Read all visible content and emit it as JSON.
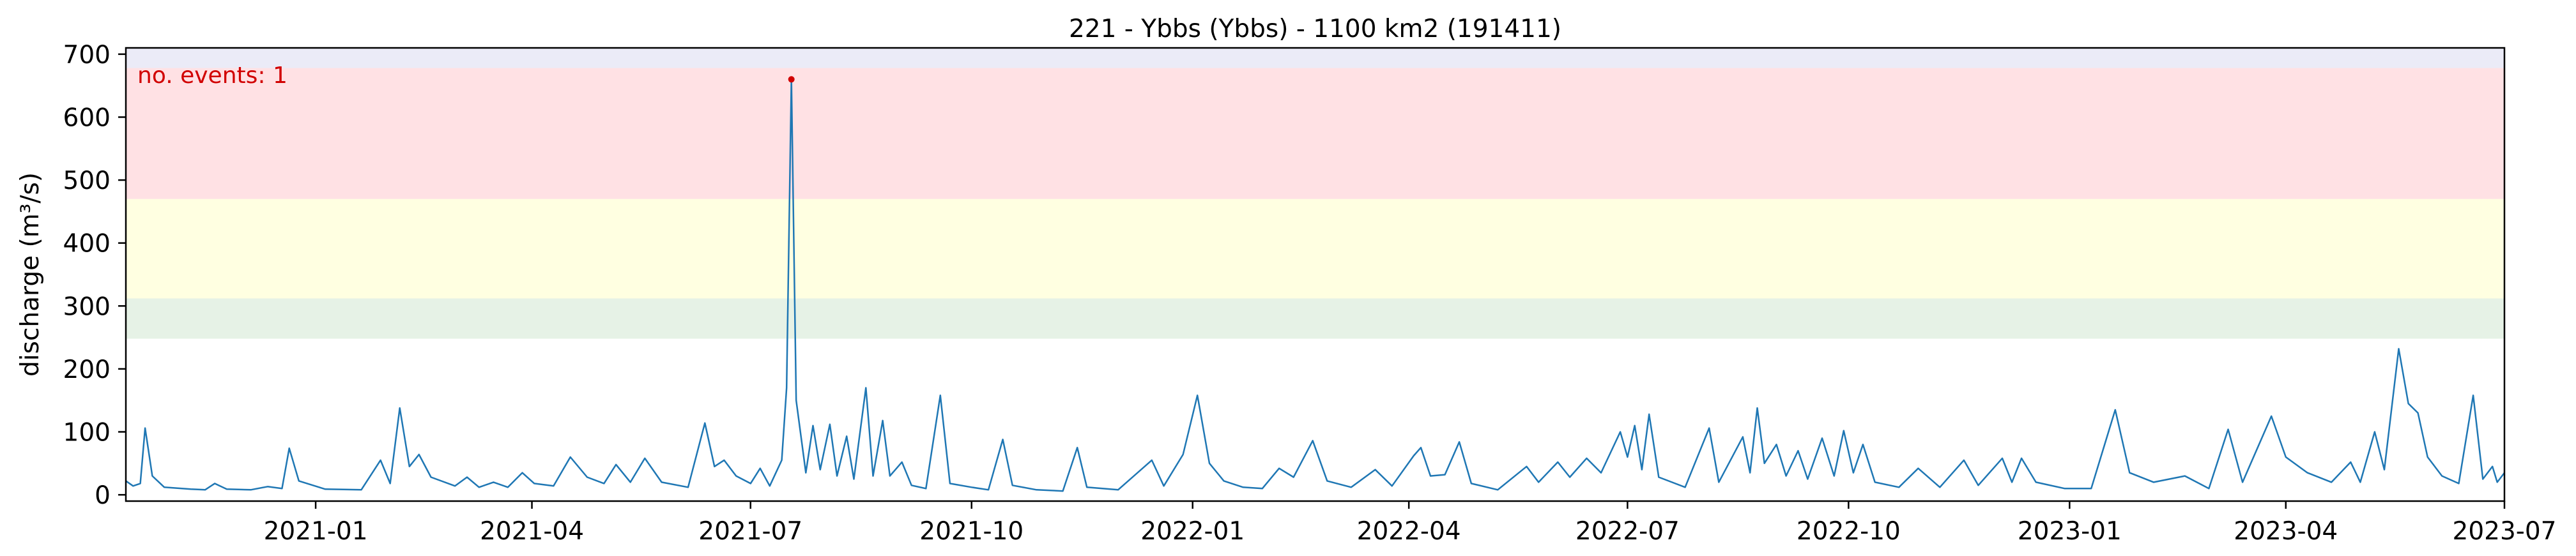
{
  "chart_data": {
    "type": "line",
    "title": "221 - Ybbs (Ybbs) - 1100 km2 (191411)",
    "xlabel": "",
    "ylabel": "discharge (m³/s)",
    "xlim": [
      "2020-10-14",
      "2023-07-01"
    ],
    "ylim": [
      -10,
      710
    ],
    "x_ticks": [
      "2021-01",
      "2021-04",
      "2021-07",
      "2021-10",
      "2022-01",
      "2022-04",
      "2022-07",
      "2022-10",
      "2023-01",
      "2023-04",
      "2023-07"
    ],
    "y_ticks": [
      0,
      100,
      200,
      300,
      400,
      500,
      600,
      700
    ],
    "grid": false,
    "bands": [
      {
        "from": 248,
        "to": 312,
        "color": "#e6f2e6"
      },
      {
        "from": 312,
        "to": 470,
        "color": "#ffffe1"
      },
      {
        "from": 470,
        "to": 678,
        "color": "#ffe1e4"
      },
      {
        "from": 678,
        "to": 710,
        "color": "#ebebf7"
      }
    ],
    "annotation": {
      "text": "no. events: 1",
      "color": "#d10000"
    },
    "event_point": {
      "x": "2021-07-18",
      "y": 660,
      "color": "#d10000"
    },
    "series": [
      {
        "color": "#1f77b4",
        "points": [
          [
            "2020-10-14",
            22
          ],
          [
            "2020-10-17",
            14
          ],
          [
            "2020-10-20",
            18
          ],
          [
            "2020-10-22",
            106
          ],
          [
            "2020-10-25",
            30
          ],
          [
            "2020-10-30",
            12
          ],
          [
            "2020-11-10",
            9
          ],
          [
            "2020-11-16",
            8
          ],
          [
            "2020-11-20",
            18
          ],
          [
            "2020-11-25",
            9
          ],
          [
            "2020-12-05",
            8
          ],
          [
            "2020-12-12",
            13
          ],
          [
            "2020-12-18",
            10
          ],
          [
            "2020-12-21",
            74
          ],
          [
            "2020-12-25",
            22
          ],
          [
            "2021-01-05",
            9
          ],
          [
            "2021-01-20",
            8
          ],
          [
            "2021-01-28",
            55
          ],
          [
            "2021-02-01",
            18
          ],
          [
            "2021-02-05",
            138
          ],
          [
            "2021-02-09",
            45
          ],
          [
            "2021-02-13",
            64
          ],
          [
            "2021-02-18",
            28
          ],
          [
            "2021-02-28",
            14
          ],
          [
            "2021-03-05",
            28
          ],
          [
            "2021-03-10",
            12
          ],
          [
            "2021-03-16",
            20
          ],
          [
            "2021-03-22",
            12
          ],
          [
            "2021-03-28",
            35
          ],
          [
            "2021-04-02",
            18
          ],
          [
            "2021-04-10",
            14
          ],
          [
            "2021-04-17",
            60
          ],
          [
            "2021-04-24",
            28
          ],
          [
            "2021-05-01",
            18
          ],
          [
            "2021-05-06",
            48
          ],
          [
            "2021-05-12",
            20
          ],
          [
            "2021-05-18",
            58
          ],
          [
            "2021-05-25",
            20
          ],
          [
            "2021-06-05",
            12
          ],
          [
            "2021-06-12",
            114
          ],
          [
            "2021-06-16",
            45
          ],
          [
            "2021-06-20",
            55
          ],
          [
            "2021-06-25",
            30
          ],
          [
            "2021-07-01",
            18
          ],
          [
            "2021-07-05",
            42
          ],
          [
            "2021-07-09",
            14
          ],
          [
            "2021-07-14",
            55
          ],
          [
            "2021-07-16",
            170
          ],
          [
            "2021-07-18",
            660
          ],
          [
            "2021-07-20",
            150
          ],
          [
            "2021-07-24",
            35
          ],
          [
            "2021-07-27",
            110
          ],
          [
            "2021-07-30",
            40
          ],
          [
            "2021-08-03",
            112
          ],
          [
            "2021-08-06",
            30
          ],
          [
            "2021-08-10",
            93
          ],
          [
            "2021-08-13",
            25
          ],
          [
            "2021-08-18",
            170
          ],
          [
            "2021-08-21",
            30
          ],
          [
            "2021-08-25",
            118
          ],
          [
            "2021-08-28",
            30
          ],
          [
            "2021-09-02",
            52
          ],
          [
            "2021-09-06",
            15
          ],
          [
            "2021-09-12",
            10
          ],
          [
            "2021-09-18",
            158
          ],
          [
            "2021-09-22",
            18
          ],
          [
            "2021-10-01",
            12
          ],
          [
            "2021-10-08",
            8
          ],
          [
            "2021-10-14",
            88
          ],
          [
            "2021-10-18",
            15
          ],
          [
            "2021-10-28",
            8
          ],
          [
            "2021-11-08",
            6
          ],
          [
            "2021-11-14",
            75
          ],
          [
            "2021-11-18",
            12
          ],
          [
            "2021-12-01",
            8
          ],
          [
            "2021-12-15",
            55
          ],
          [
            "2021-12-20",
            14
          ],
          [
            "2021-12-28",
            64
          ],
          [
            "2022-01-03",
            158
          ],
          [
            "2022-01-08",
            50
          ],
          [
            "2022-01-14",
            22
          ],
          [
            "2022-01-22",
            12
          ],
          [
            "2022-01-30",
            10
          ],
          [
            "2022-02-06",
            42
          ],
          [
            "2022-02-12",
            28
          ],
          [
            "2022-02-20",
            86
          ],
          [
            "2022-02-26",
            22
          ],
          [
            "2022-03-08",
            12
          ],
          [
            "2022-03-18",
            40
          ],
          [
            "2022-03-25",
            14
          ],
          [
            "2022-04-03",
            62
          ],
          [
            "2022-04-06",
            75
          ],
          [
            "2022-04-10",
            30
          ],
          [
            "2022-04-16",
            32
          ],
          [
            "2022-04-22",
            84
          ],
          [
            "2022-04-27",
            18
          ],
          [
            "2022-05-08",
            8
          ],
          [
            "2022-05-20",
            45
          ],
          [
            "2022-05-25",
            20
          ],
          [
            "2022-06-02",
            52
          ],
          [
            "2022-06-07",
            28
          ],
          [
            "2022-06-14",
            58
          ],
          [
            "2022-06-20",
            35
          ],
          [
            "2022-06-28",
            100
          ],
          [
            "2022-07-01",
            60
          ],
          [
            "2022-07-04",
            110
          ],
          [
            "2022-07-07",
            40
          ],
          [
            "2022-07-10",
            128
          ],
          [
            "2022-07-14",
            28
          ],
          [
            "2022-07-25",
            12
          ],
          [
            "2022-08-04",
            106
          ],
          [
            "2022-08-08",
            20
          ],
          [
            "2022-08-18",
            92
          ],
          [
            "2022-08-21",
            35
          ],
          [
            "2022-08-24",
            138
          ],
          [
            "2022-08-27",
            50
          ],
          [
            "2022-09-01",
            80
          ],
          [
            "2022-09-05",
            30
          ],
          [
            "2022-09-10",
            70
          ],
          [
            "2022-09-14",
            25
          ],
          [
            "2022-09-20",
            90
          ],
          [
            "2022-09-25",
            30
          ],
          [
            "2022-09-29",
            102
          ],
          [
            "2022-10-03",
            35
          ],
          [
            "2022-10-07",
            80
          ],
          [
            "2022-10-12",
            20
          ],
          [
            "2022-10-22",
            12
          ],
          [
            "2022-10-30",
            42
          ],
          [
            "2022-11-08",
            12
          ],
          [
            "2022-11-18",
            55
          ],
          [
            "2022-11-24",
            15
          ],
          [
            "2022-12-04",
            58
          ],
          [
            "2022-12-08",
            20
          ],
          [
            "2022-12-12",
            58
          ],
          [
            "2022-12-18",
            20
          ],
          [
            "2022-12-30",
            10
          ],
          [
            "2023-01-10",
            10
          ],
          [
            "2023-01-20",
            135
          ],
          [
            "2023-01-26",
            35
          ],
          [
            "2023-02-05",
            20
          ],
          [
            "2023-02-18",
            30
          ],
          [
            "2023-02-28",
            10
          ],
          [
            "2023-03-08",
            104
          ],
          [
            "2023-03-14",
            20
          ],
          [
            "2023-03-26",
            125
          ],
          [
            "2023-04-01",
            60
          ],
          [
            "2023-04-10",
            35
          ],
          [
            "2023-04-20",
            20
          ],
          [
            "2023-04-28",
            52
          ],
          [
            "2023-05-02",
            20
          ],
          [
            "2023-05-08",
            100
          ],
          [
            "2023-05-12",
            40
          ],
          [
            "2023-05-18",
            232
          ],
          [
            "2023-05-22",
            145
          ],
          [
            "2023-05-26",
            130
          ],
          [
            "2023-05-30",
            60
          ],
          [
            "2023-06-05",
            30
          ],
          [
            "2023-06-12",
            18
          ],
          [
            "2023-06-18",
            158
          ],
          [
            "2023-06-22",
            25
          ],
          [
            "2023-06-26",
            45
          ],
          [
            "2023-06-28",
            20
          ],
          [
            "2023-07-01",
            35
          ]
        ]
      }
    ]
  }
}
